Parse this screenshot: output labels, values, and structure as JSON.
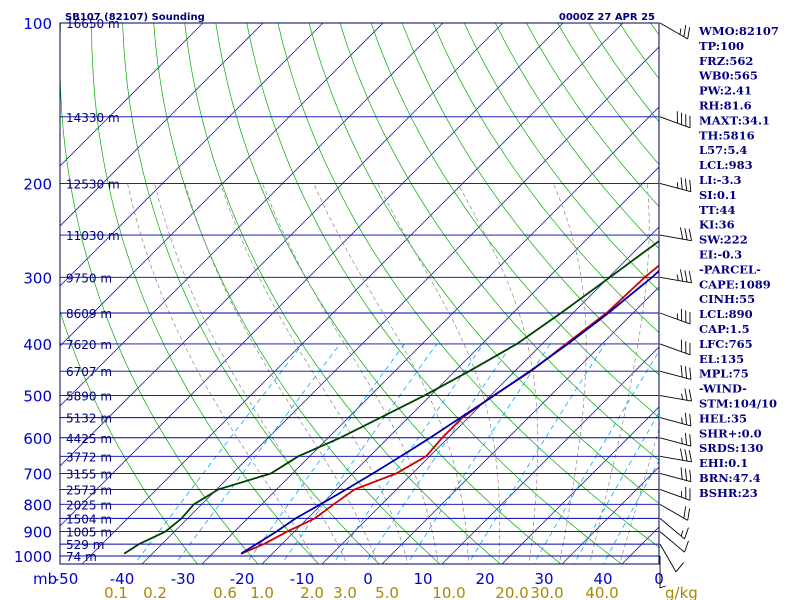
{
  "chart_data": {
    "type": "line",
    "title_left": "SB107 (82107) Sounding",
    "title_right": "0000Z 27 APR 25",
    "y_unit_label": "mb",
    "x_unit_label": "g/kg",
    "pressure_ticks": [
      100,
      200,
      300,
      400,
      500,
      600,
      700,
      800,
      900,
      1000
    ],
    "temperature_ticks": [
      -50,
      -40,
      -30,
      -20,
      -10,
      0,
      10,
      20,
      30,
      40,
      0
    ],
    "mixing_ratio_ticks": [
      "0.1",
      "0.2",
      "0.6",
      "1.0",
      "2.0",
      "3.0",
      "5.0",
      "10.0",
      "20.0",
      "30.0",
      "40.0"
    ],
    "height_labels": [
      {
        "p": 100,
        "text": "16650 m"
      },
      {
        "p": 150,
        "text": "14330 m"
      },
      {
        "p": 200,
        "text": "12530 m"
      },
      {
        "p": 250,
        "text": "11030 m"
      },
      {
        "p": 300,
        "text": "9750 m"
      },
      {
        "p": 350,
        "text": "8609 m"
      },
      {
        "p": 400,
        "text": "7620 m"
      },
      {
        "p": 450,
        "text": "6707 m"
      },
      {
        "p": 500,
        "text": "5890 m"
      },
      {
        "p": 550,
        "text": "5132 m"
      },
      {
        "p": 600,
        "text": "4425 m"
      },
      {
        "p": 650,
        "text": "3772 m"
      },
      {
        "p": 700,
        "text": "3155 m"
      },
      {
        "p": 750,
        "text": "2573 m"
      },
      {
        "p": 800,
        "text": "2025 m"
      },
      {
        "p": 850,
        "text": "1504 m"
      },
      {
        "p": 900,
        "text": "1005 m"
      },
      {
        "p": 950,
        "text": "529 m"
      },
      {
        "p": 1000,
        "text": "74 m"
      }
    ],
    "series": [
      {
        "color": "#cc0000",
        "points": [
          {
            "p": 100,
            "x": -3.0
          },
          {
            "p": 150,
            "x": -3.0
          },
          {
            "p": 200,
            "x": -3.8
          },
          {
            "p": 250,
            "x": -2.5
          },
          {
            "p": 300,
            "x": -4.0
          },
          {
            "p": 350,
            "x": -4.4
          },
          {
            "p": 400,
            "x": -6.0
          },
          {
            "p": 450,
            "x": -7.3
          },
          {
            "p": 500,
            "x": -9.5
          },
          {
            "p": 550,
            "x": -11.0
          },
          {
            "p": 600,
            "x": -11.0
          },
          {
            "p": 650,
            "x": -10.6
          },
          {
            "p": 700,
            "x": -12.7
          },
          {
            "p": 750,
            "x": -17.0
          },
          {
            "p": 800,
            "x": -18.0
          },
          {
            "p": 850,
            "x": -18.8
          },
          {
            "p": 900,
            "x": -21.2
          },
          {
            "p": 950,
            "x": -23.0
          },
          {
            "p": 990,
            "x": -25.2
          }
        ]
      },
      {
        "color": "#004000",
        "points": [
          {
            "p": 100,
            "x": -3.3
          },
          {
            "p": 150,
            "x": -1.0
          },
          {
            "p": 198,
            "x": -2.2
          },
          {
            "p": 203,
            "x": -6.3
          },
          {
            "p": 250,
            "x": -7.3
          },
          {
            "p": 300,
            "x": -9.8
          },
          {
            "p": 350,
            "x": -12.0
          },
          {
            "p": 400,
            "x": -14.2
          },
          {
            "p": 450,
            "x": -17.6
          },
          {
            "p": 500,
            "x": -21.0
          },
          {
            "p": 600,
            "x": -28.0
          },
          {
            "p": 650,
            "x": -31.9
          },
          {
            "p": 700,
            "x": -33.6
          },
          {
            "p": 750,
            "x": -39.7
          },
          {
            "p": 800,
            "x": -41.3
          },
          {
            "p": 850,
            "x": -41.0
          },
          {
            "p": 900,
            "x": -41.5
          },
          {
            "p": 950,
            "x": -43.8
          },
          {
            "p": 990,
            "x": -44.7
          }
        ]
      },
      {
        "color": "#0000aa",
        "points": [
          {
            "p": 120,
            "x": -1.3
          },
          {
            "p": 150,
            "x": -2.1
          },
          {
            "p": 200,
            "x": -1.4
          },
          {
            "p": 250,
            "x": -1.9
          },
          {
            "p": 300,
            "x": -2.8
          },
          {
            "p": 350,
            "x": -4.1
          },
          {
            "p": 400,
            "x": -5.7
          },
          {
            "p": 450,
            "x": -7.5
          },
          {
            "p": 500,
            "x": -9.4
          },
          {
            "p": 550,
            "x": -11.3
          },
          {
            "p": 600,
            "x": -13.0
          },
          {
            "p": 650,
            "x": -14.8
          },
          {
            "p": 700,
            "x": -16.6
          },
          {
            "p": 750,
            "x": -18.4
          },
          {
            "p": 800,
            "x": -20.2
          },
          {
            "p": 850,
            "x": -22.0
          },
          {
            "p": 900,
            "x": -23.0
          },
          {
            "p": 990,
            "x": -25.2
          }
        ]
      }
    ],
    "winds": [
      {
        "p": 100,
        "dir": 300,
        "spd": 25
      },
      {
        "p": 150,
        "dir": 290,
        "spd": 40
      },
      {
        "p": 200,
        "dir": 285,
        "spd": 35
      },
      {
        "p": 250,
        "dir": 280,
        "spd": 30
      },
      {
        "p": 300,
        "dir": 280,
        "spd": 35
      },
      {
        "p": 350,
        "dir": 290,
        "spd": 35
      },
      {
        "p": 400,
        "dir": 290,
        "spd": 30
      },
      {
        "p": 450,
        "dir": 285,
        "spd": 30
      },
      {
        "p": 500,
        "dir": 280,
        "spd": 25
      },
      {
        "p": 550,
        "dir": 285,
        "spd": 25
      },
      {
        "p": 600,
        "dir": 285,
        "spd": 25
      },
      {
        "p": 650,
        "dir": 280,
        "spd": 30
      },
      {
        "p": 700,
        "dir": 285,
        "spd": 30
      },
      {
        "p": 750,
        "dir": 290,
        "spd": 25
      },
      {
        "p": 800,
        "dir": 300,
        "spd": 20
      },
      {
        "p": 850,
        "dir": 310,
        "spd": 15
      },
      {
        "p": 900,
        "dir": 310,
        "spd": 10
      },
      {
        "p": 950,
        "dir": 330,
        "spd": 10
      },
      {
        "p": 1000,
        "dir": 0,
        "spd": 5
      }
    ],
    "indices": [
      "WMO:82107",
      "TP:100",
      "FRZ:562",
      "WB0:565",
      "PW:2.41",
      "RH:81.6",
      "MAXT:34.1",
      "TH:5816",
      "L57:5.4",
      "LCL:983",
      "LI:-3.3",
      "SI:0.1",
      "TT:44",
      "KI:36",
      "SW:222",
      "EI:-0.3",
      "-PARCEL-",
      "CAPE:1089",
      "CINH:55",
      "LCL:890",
      "CAP:1.5",
      "LFC:765",
      "EL:135",
      "MPL:75",
      "-WIND-",
      "STM:104/10",
      "HEL:35",
      "SHR+:0.0",
      "SRDS:130",
      "EHI:0.1",
      "BRN:47.4",
      "BSHR:23"
    ],
    "colors": {
      "isobar": "#0000aa",
      "isotherm": "#2020c0",
      "dry_adiabat": "#00aa00",
      "moist_adiabat": "#888888",
      "mixing_ratio": "#00aaff",
      "axis_text": "#0000cc",
      "mixing_text": "#aa8800"
    }
  }
}
